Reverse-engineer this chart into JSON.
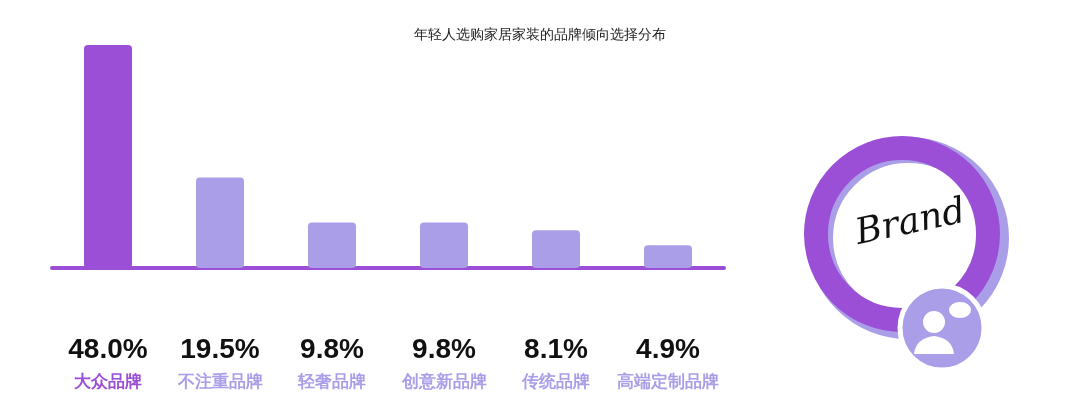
{
  "chart_data": {
    "type": "bar",
    "title": "年轻人选购家居家装的品牌倾向选择分布",
    "categories": [
      "大众品牌",
      "不注重品牌",
      "轻奢品牌",
      "创意新品牌",
      "传统品牌",
      "高端定制品牌"
    ],
    "values": [
      48.0,
      19.5,
      9.8,
      9.8,
      8.1,
      4.9
    ],
    "value_labels": [
      "48.0%",
      "19.5%",
      "9.8%",
      "9.8%",
      "8.1%",
      "4.9%"
    ],
    "colors": [
      "#9b4fd6",
      "#ab9ee8",
      "#ab9ee8",
      "#ab9ee8",
      "#ab9ee8",
      "#ab9ee8"
    ],
    "annotations": [
      "Brand"
    ],
    "grid": false
  }
}
